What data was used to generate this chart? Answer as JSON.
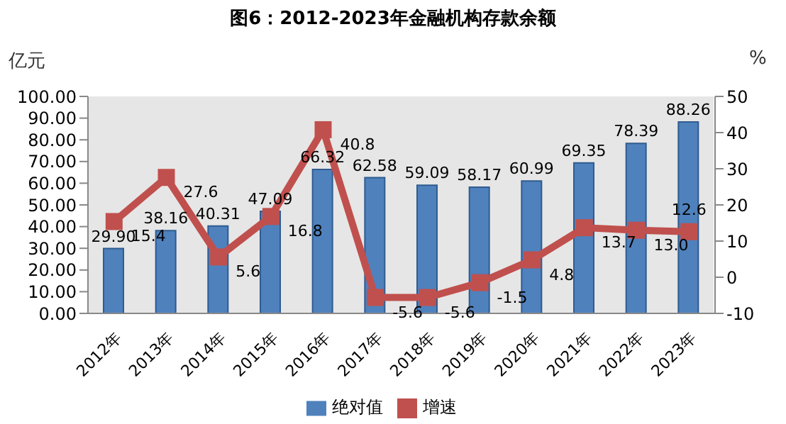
{
  "chart_data": {
    "type": "bar",
    "title": "图6：2012-2023年金融机构存款余额",
    "ylabel": "亿元",
    "y2label": "%",
    "categories": [
      "2012年",
      "2013年",
      "2014年",
      "2015年",
      "2016年",
      "2017年",
      "2018年",
      "2019年",
      "2020年",
      "2021年",
      "2022年",
      "2023年"
    ],
    "series": [
      {
        "name": "绝对值",
        "color": "#4f81bd",
        "values": [
          29.9,
          38.16,
          40.31,
          47.09,
          66.32,
          62.58,
          59.09,
          58.17,
          60.99,
          69.35,
          78.39,
          88.26
        ],
        "value_labels": [
          "29.90",
          "38.16",
          "40.31",
          "47.09",
          "66.32",
          "62.58",
          "59.09",
          "58.17",
          "60.99",
          "69.35",
          "78.39",
          "88.26"
        ]
      },
      {
        "name": "增速",
        "type": "line",
        "axis": "y2",
        "color": "#c0504d",
        "marker": "square",
        "values": [
          15.4,
          27.6,
          5.6,
          16.8,
          40.8,
          -5.6,
          -5.6,
          -1.5,
          4.8,
          13.7,
          13.0,
          12.6
        ],
        "value_labels": [
          "15.4",
          "27.6",
          "5.6",
          "16.8",
          "40.8",
          "-5.6",
          "-5.6",
          "-1.5",
          "4.8",
          "13.7",
          "13.0",
          "12.6"
        ]
      }
    ],
    "ylim": [
      0,
      100
    ],
    "yticks": [
      {
        "value": 0,
        "label": "0.00"
      },
      {
        "value": 10,
        "label": "10.00"
      },
      {
        "value": 20,
        "label": "20.00"
      },
      {
        "value": 30,
        "label": "30.00"
      },
      {
        "value": 40,
        "label": "40.00"
      },
      {
        "value": 50,
        "label": "50.00"
      },
      {
        "value": 60,
        "label": "60.00"
      },
      {
        "value": 70,
        "label": "70.00"
      },
      {
        "value": 80,
        "label": "80.00"
      },
      {
        "value": 90,
        "label": "90.00"
      },
      {
        "value": 100,
        "label": "100.00"
      }
    ],
    "y2lim": [
      -10,
      50
    ],
    "y2ticks": [
      -10,
      0,
      10,
      20,
      30,
      40,
      50
    ],
    "grid": false,
    "legend": "bottom"
  }
}
